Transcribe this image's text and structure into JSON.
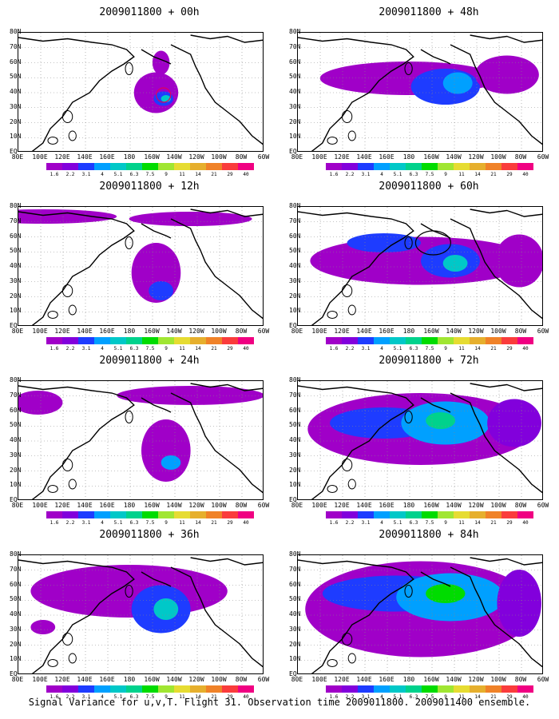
{
  "panels": [
    {
      "title": "2009011800 + 00h",
      "level": 0
    },
    {
      "title": "2009011800 + 48h",
      "level": 4
    },
    {
      "title": "2009011800 + 12h",
      "level": 1
    },
    {
      "title": "2009011800 + 60h",
      "level": 5
    },
    {
      "title": "2009011800 + 24h",
      "level": 2
    },
    {
      "title": "2009011800 + 72h",
      "level": 6
    },
    {
      "title": "2009011800 + 36h",
      "level": 3
    },
    {
      "title": "2009011800 + 84h",
      "level": 7
    }
  ],
  "lat_labels": [
    "80N",
    "70N",
    "60N",
    "50N",
    "40N",
    "30N",
    "20N",
    "10N",
    "EQ"
  ],
  "lon_labels": [
    "80E",
    "100E",
    "120E",
    "140E",
    "160E",
    "180",
    "160W",
    "140W",
    "120W",
    "100W",
    "80W",
    "60W"
  ],
  "colorbar": {
    "labels": [
      "1.6",
      "2.2",
      "3.1",
      "4",
      "5.1",
      "6.3",
      "7.5",
      "9",
      "11",
      "14",
      "21",
      "29",
      "40"
    ],
    "colors": [
      "#a000c8",
      "#8200dc",
      "#1e3cff",
      "#00a0ff",
      "#00c8c8",
      "#00d28c",
      "#00dc00",
      "#a0e632",
      "#e6dc32",
      "#e6af2d",
      "#f08228",
      "#fa3c3c",
      "#f00082"
    ]
  },
  "caption": "Signal Variance for u,v,T. Flight 31. Observation time 2009011800. 2009011400 ensemble."
}
